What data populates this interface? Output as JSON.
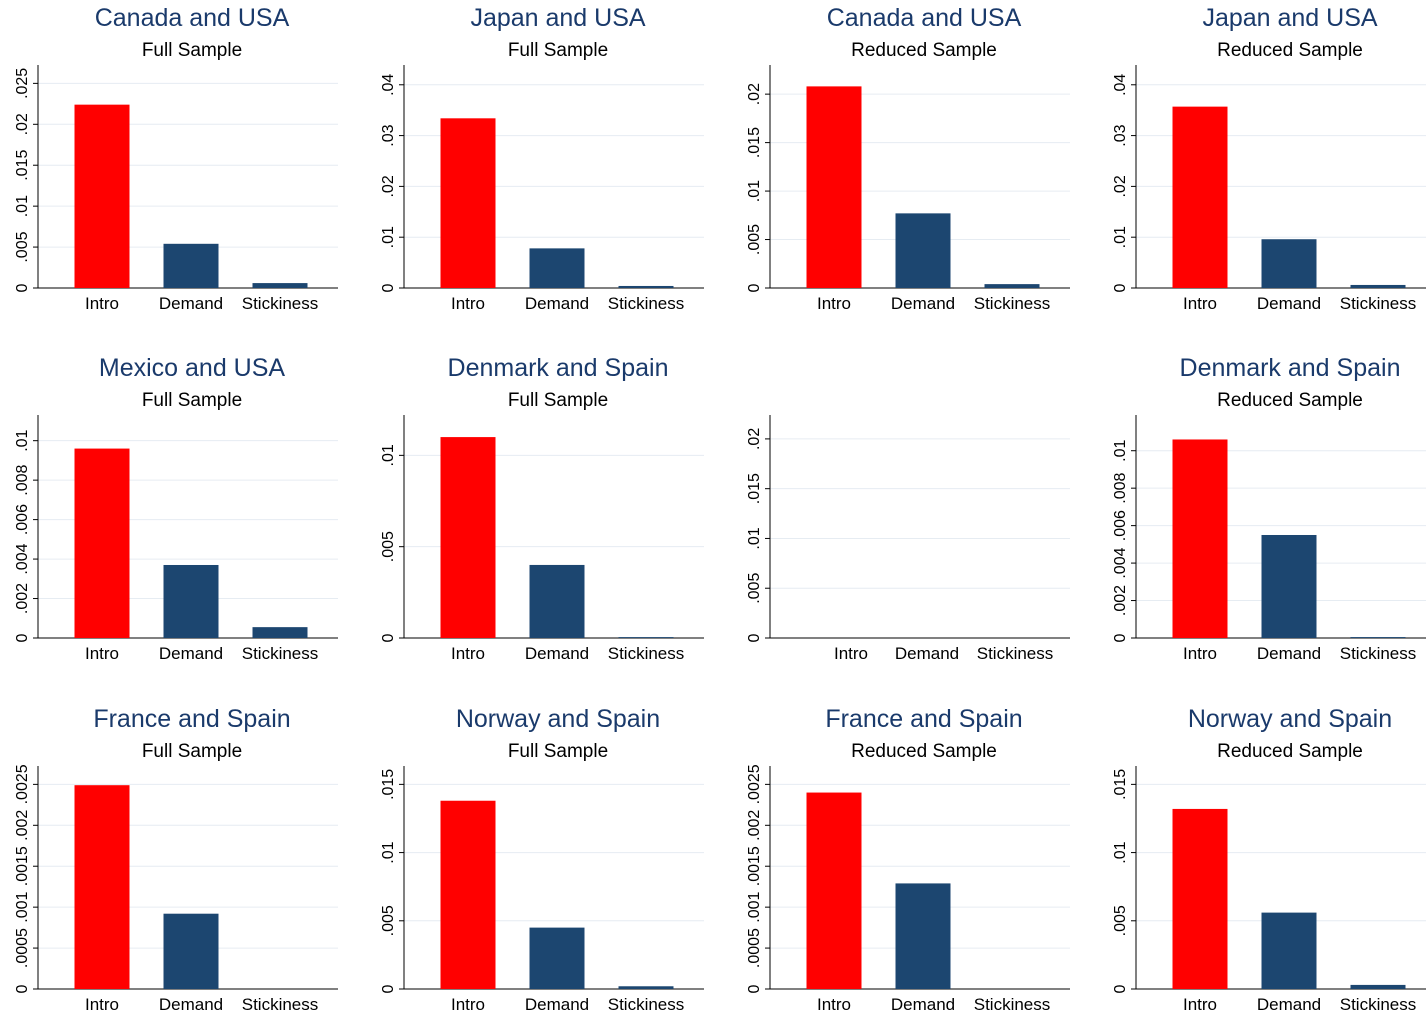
{
  "colors": {
    "intro": "#ff0000",
    "other": "#1c4670",
    "title": "#1a3a6b",
    "grid": "#e6ecf2"
  },
  "chart_data": [
    {
      "type": "bar",
      "title": "Canada and USA",
      "subtitle": "Full Sample",
      "categories": [
        "Intro",
        "Demand",
        "Stickiness"
      ],
      "values": [
        0.0224,
        0.0054,
        0.0006
      ],
      "ylim": [
        0,
        0.027
      ],
      "yticks": [
        0,
        0.005,
        0.01,
        0.015,
        0.02,
        0.025
      ],
      "ytick_labels": [
        "0",
        ".005",
        ".01",
        ".015",
        ".02",
        ".025"
      ]
    },
    {
      "type": "bar",
      "title": "Japan and USA",
      "subtitle": "Full Sample",
      "categories": [
        "Intro",
        "Demand",
        "Stickiness"
      ],
      "values": [
        0.0334,
        0.0078,
        0.0004
      ],
      "ylim": [
        0,
        0.0435
      ],
      "yticks": [
        0,
        0.01,
        0.02,
        0.03,
        0.04
      ],
      "ytick_labels": [
        "0",
        ".01",
        ".02",
        ".03",
        ".04"
      ]
    },
    {
      "type": "bar",
      "title": "Canada and USA",
      "subtitle": "Reduced Sample",
      "categories": [
        "Intro",
        "Demand",
        "Stickiness"
      ],
      "values": [
        0.0208,
        0.0077,
        0.0004
      ],
      "ylim": [
        0,
        0.0228
      ],
      "yticks": [
        0,
        0.005,
        0.01,
        0.015,
        0.02
      ],
      "ytick_labels": [
        "0",
        ".005",
        ".01",
        ".015",
        ".02"
      ]
    },
    {
      "type": "bar",
      "title": "Japan and USA",
      "subtitle": "Reduced Sample",
      "categories": [
        "Intro",
        "Demand",
        "Stickiness"
      ],
      "values": [
        0.0357,
        0.0096,
        0.0006
      ],
      "ylim": [
        0,
        0.0435
      ],
      "yticks": [
        0,
        0.01,
        0.02,
        0.03,
        0.04
      ],
      "ytick_labels": [
        "0",
        ".01",
        ".02",
        ".03",
        ".04"
      ]
    },
    {
      "type": "bar",
      "title": "Mexico and USA",
      "subtitle": "Full Sample",
      "categories": [
        "Intro",
        "Demand",
        "Stickiness"
      ],
      "values": [
        0.0096,
        0.0037,
        0.00055
      ],
      "ylim": [
        0,
        0.0112
      ],
      "yticks": [
        0,
        0.002,
        0.004,
        0.006,
        0.008,
        0.01
      ],
      "ytick_labels": [
        "0",
        ".002",
        ".004",
        ".006",
        ".008",
        ".01"
      ]
    },
    {
      "type": "bar",
      "title": "Denmark and Spain",
      "subtitle": "Full Sample",
      "categories": [
        "Intro",
        "Demand",
        "Stickiness"
      ],
      "values": [
        0.011,
        0.004,
        5e-05
      ],
      "ylim": [
        0,
        0.0121
      ],
      "yticks": [
        0,
        0.005,
        0.01
      ],
      "ytick_labels": [
        "0",
        ".005",
        ".01"
      ]
    },
    {
      "type": "bar",
      "title": "",
      "subtitle": "",
      "categories": [
        "Intro",
        "Demand",
        "Stickiness"
      ],
      "values": [
        0,
        0,
        0
      ],
      "ylim": [
        0,
        0.0222
      ],
      "yticks": [
        0,
        0.005,
        0.01,
        0.015,
        0.02
      ],
      "ytick_labels": [
        "0",
        ".005",
        ".01",
        ".015",
        ".02"
      ]
    },
    {
      "type": "bar",
      "title": "Denmark and Spain",
      "subtitle": "Reduced Sample",
      "categories": [
        "Intro",
        "Demand",
        "Stickiness"
      ],
      "values": [
        0.0106,
        0.0055,
        5e-05
      ],
      "ylim": [
        0,
        0.0118
      ],
      "yticks": [
        0,
        0.002,
        0.004,
        0.006,
        0.008,
        0.01
      ],
      "ytick_labels": [
        "0",
        ".002",
        ".004",
        ".006",
        ".008",
        ".01"
      ]
    },
    {
      "type": "bar",
      "title": "France and Spain",
      "subtitle": "Full Sample",
      "categories": [
        "Intro",
        "Demand",
        "Stickiness"
      ],
      "values": [
        0.00249,
        0.00092,
        0.0
      ],
      "ylim": [
        0,
        0.0027
      ],
      "yticks": [
        0,
        0.0005,
        0.001,
        0.0015,
        0.002,
        0.0025
      ],
      "ytick_labels": [
        "0",
        ".0005",
        ".001",
        ".0015",
        ".002",
        ".0025"
      ]
    },
    {
      "type": "bar",
      "title": "Norway and Spain",
      "subtitle": "Full Sample",
      "categories": [
        "Intro",
        "Demand",
        "Stickiness"
      ],
      "values": [
        0.0138,
        0.0045,
        0.0002
      ],
      "ylim": [
        0,
        0.0162
      ],
      "yticks": [
        0,
        0.005,
        0.01,
        0.015
      ],
      "ytick_labels": [
        "0",
        ".005",
        ".01",
        ".015"
      ]
    },
    {
      "type": "bar",
      "title": "France and Spain",
      "subtitle": "Reduced Sample",
      "categories": [
        "Intro",
        "Demand",
        "Stickiness"
      ],
      "values": [
        0.0024,
        0.00129,
        0.0
      ],
      "ylim": [
        0,
        0.0027
      ],
      "yticks": [
        0,
        0.0005,
        0.001,
        0.0015,
        0.002,
        0.0025
      ],
      "ytick_labels": [
        "0",
        ".0005",
        ".001",
        ".0015",
        ".002",
        ".0025"
      ]
    },
    {
      "type": "bar",
      "title": "Norway and Spain",
      "subtitle": "Reduced Sample",
      "categories": [
        "Intro",
        "Demand",
        "Stickiness"
      ],
      "values": [
        0.0132,
        0.0056,
        0.0003
      ],
      "ylim": [
        0,
        0.0162
      ],
      "yticks": [
        0,
        0.005,
        0.01,
        0.015
      ],
      "ytick_labels": [
        "0",
        ".005",
        ".01",
        ".015"
      ]
    }
  ]
}
